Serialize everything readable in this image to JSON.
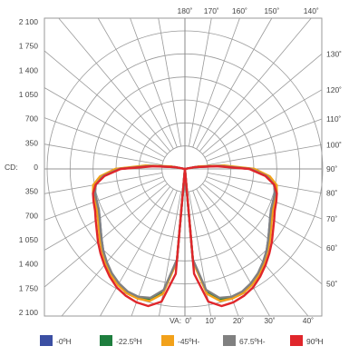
{
  "chart_data": {
    "type": "polar",
    "series": [
      {
        "name": "-0ºH",
        "color": "#3b4fa3",
        "r": [
          0,
          1400,
          1900,
          2050,
          2090,
          2080,
          2030,
          1960,
          1860,
          1760,
          1660,
          1570,
          1500,
          1450,
          1430,
          1420,
          1380,
          1250,
          1000,
          500,
          150,
          0
        ]
      },
      {
        "name": "-22.5ºH",
        "color": "#1e7e3e",
        "r": [
          0,
          1410,
          1910,
          2060,
          2095,
          2085,
          2035,
          1965,
          1870,
          1770,
          1670,
          1580,
          1510,
          1460,
          1440,
          1430,
          1400,
          1280,
          1040,
          560,
          200,
          0
        ]
      },
      {
        "name": "-45ºH-",
        "color": "#f2a11a",
        "r": [
          0,
          1420,
          1930,
          2080,
          2100,
          2090,
          2040,
          1970,
          1880,
          1780,
          1690,
          1600,
          1530,
          1480,
          1460,
          1450,
          1420,
          1300,
          1060,
          600,
          220,
          0
        ]
      },
      {
        "name": "67.5ºH-",
        "color": "#808080",
        "r": [
          0,
          1380,
          1870,
          2030,
          2070,
          2060,
          2010,
          1940,
          1850,
          1760,
          1660,
          1570,
          1500,
          1450,
          1430,
          1420,
          1380,
          1250,
          1000,
          520,
          160,
          0
        ]
      },
      {
        "name": "90ºH",
        "color": "#e0262b",
        "r": [
          0,
          1600,
          2050,
          2160,
          2160,
          2130,
          2080,
          2000,
          1910,
          1820,
          1730,
          1640,
          1570,
          1510,
          1480,
          1450,
          1380,
          1230,
          980,
          480,
          150,
          0
        ]
      }
    ],
    "angles_deg": [
      0,
      5,
      10,
      15,
      20,
      25,
      30,
      35,
      40,
      45,
      50,
      55,
      60,
      65,
      70,
      75,
      80,
      85,
      90,
      95,
      100,
      105
    ],
    "r_max": 2100,
    "r_ticks": [
      2100,
      1750,
      1400,
      1050,
      700,
      350,
      0
    ],
    "r_tick_labels": [
      "2 100",
      "1 750",
      "1 400",
      "1 050",
      "700",
      "350",
      "0",
      "350",
      "700",
      "1 050",
      "1 400",
      "1 750",
      "2 100"
    ],
    "cd_label": "CD:",
    "va_label": "VA:",
    "angle_labels_bottom": [
      "0˚",
      "10˚",
      "20˚",
      "30˚",
      "40˚"
    ],
    "angle_labels_right": [
      "50˚",
      "60˚",
      "70˚",
      "80˚",
      "90˚",
      "100˚",
      "110˚",
      "120˚",
      "130˚"
    ],
    "angle_labels_top": [
      "180˚",
      "170˚",
      "160˚",
      "150˚",
      "140˚"
    ],
    "grid": true,
    "legend_position": "bottom"
  },
  "legend": [
    {
      "label": "-0ºH",
      "color": "#3b4fa3"
    },
    {
      "label": "-22.5ºH",
      "color": "#1e7e3e"
    },
    {
      "label": "-45ºH-",
      "color": "#f2a11a"
    },
    {
      "label": "67.5ºH-",
      "color": "#808080"
    },
    {
      "label": "90ºH",
      "color": "#e0262b"
    }
  ]
}
